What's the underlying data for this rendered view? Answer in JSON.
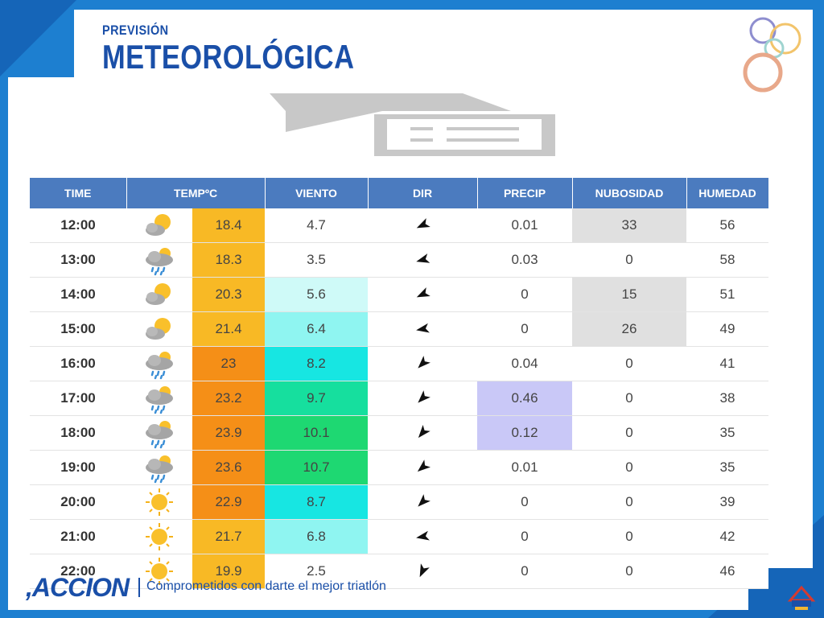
{
  "header": {
    "subtitle": "PREVISIÓN",
    "title": "METEOROLÓGICA"
  },
  "table": {
    "columns": [
      "TIME",
      "TEMPºC",
      "VIENTO",
      "DIR",
      "PRECIP",
      "NUBOSIDAD",
      "HUMEDAD"
    ],
    "rows": [
      {
        "time": "12:00",
        "icon": "sun-cloud-icon",
        "temp": "18.4",
        "wind": "4.7",
        "dir": "wind-arrow-icon",
        "precip": "0.01",
        "cloud": "33",
        "hum": "56"
      },
      {
        "time": "13:00",
        "icon": "cloud-rain-icon",
        "temp": "18.3",
        "wind": "3.5",
        "dir": "wind-arrow-icon",
        "precip": "0.03",
        "cloud": "0",
        "hum": "58"
      },
      {
        "time": "14:00",
        "icon": "sun-cloud-icon",
        "temp": "20.3",
        "wind": "5.6",
        "dir": "wind-arrow-icon",
        "precip": "0",
        "cloud": "15",
        "hum": "51"
      },
      {
        "time": "15:00",
        "icon": "sun-cloud-icon",
        "temp": "21.4",
        "wind": "6.4",
        "dir": "wind-arrow-icon",
        "precip": "0",
        "cloud": "26",
        "hum": "49"
      },
      {
        "time": "16:00",
        "icon": "cloud-rain-icon",
        "temp": "23",
        "wind": "8.2",
        "dir": "wind-arrow-icon",
        "precip": "0.04",
        "cloud": "0",
        "hum": "41"
      },
      {
        "time": "17:00",
        "icon": "cloud-rain-icon",
        "temp": "23.2",
        "wind": "9.7",
        "dir": "wind-arrow-icon",
        "precip": "0.46",
        "cloud": "0",
        "hum": "38"
      },
      {
        "time": "18:00",
        "icon": "cloud-rain-icon",
        "temp": "23.9",
        "wind": "10.1",
        "dir": "wind-arrow-icon",
        "precip": "0.12",
        "cloud": "0",
        "hum": "35"
      },
      {
        "time": "19:00",
        "icon": "cloud-rain-icon",
        "temp": "23.6",
        "wind": "10.7",
        "dir": "wind-arrow-icon",
        "precip": "0.01",
        "cloud": "0",
        "hum": "35"
      },
      {
        "time": "20:00",
        "icon": "sun-icon",
        "temp": "22.9",
        "wind": "8.7",
        "dir": "wind-arrow-icon",
        "precip": "0",
        "cloud": "0",
        "hum": "39"
      },
      {
        "time": "21:00",
        "icon": "sun-icon",
        "temp": "21.7",
        "wind": "6.8",
        "dir": "wind-arrow-icon",
        "precip": "0",
        "cloud": "0",
        "hum": "42"
      },
      {
        "time": "22:00",
        "icon": "sun-icon",
        "temp": "19.9",
        "wind": "2.5",
        "dir": "wind-arrow-icon",
        "precip": "0",
        "cloud": "0",
        "hum": "46"
      }
    ]
  },
  "footer": {
    "brand": ",ACCION",
    "tagline": "Comprometidos con darte el mejor triatlón"
  },
  "colors": {
    "frame_blue": "#1d7fd0",
    "title_blue": "#1a4fa8",
    "header_bg": "#4b7bbf"
  }
}
